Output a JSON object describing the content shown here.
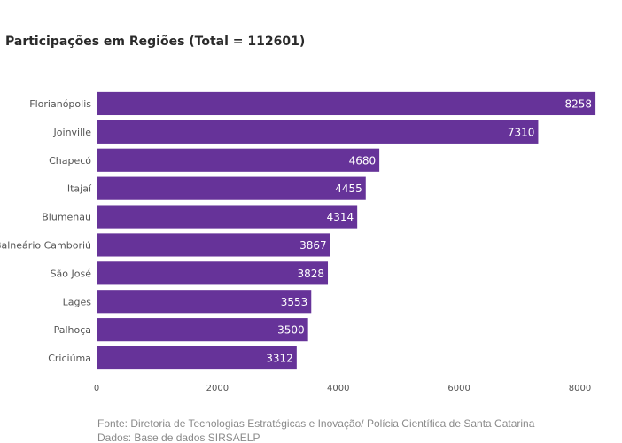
{
  "chart_data": {
    "type": "bar",
    "orientation": "horizontal",
    "title": "Participações em Regiões (Total = 112601)",
    "categories": [
      "Florianópolis",
      "Joinville",
      "Chapecó",
      "Itajaí",
      "Blumenau",
      "Balneário Camboriú",
      "São José",
      "Lages",
      "Palhoça",
      "Criciúma"
    ],
    "values": [
      8258,
      7310,
      4680,
      4455,
      4314,
      3867,
      3828,
      3553,
      3500,
      3312
    ],
    "xticks": [
      "0",
      "2000",
      "4000",
      "6000",
      "8000"
    ],
    "xlim": [
      0,
      8330
    ],
    "grid": false,
    "bar_color": "#663399",
    "label_color": "#ffffff"
  },
  "footer": {
    "source_line": "Fonte: Diretoria de Tecnologias Estratégicas e Inovação/ Polícia Científica de Santa Catarina",
    "data_line": "Dados: Base de dados SIRSAELP"
  }
}
